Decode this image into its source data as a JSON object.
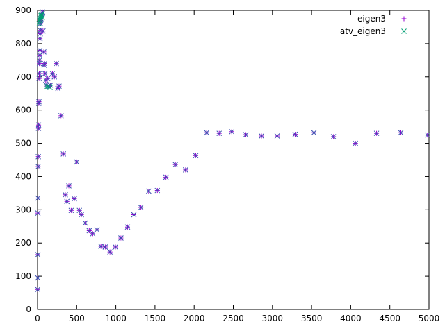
{
  "chart_data": {
    "type": "scatter",
    "title": "",
    "xlabel": "",
    "ylabel": "",
    "xlim": [
      0,
      5000
    ],
    "ylim": [
      0,
      900
    ],
    "xticks": [
      0,
      500,
      1000,
      1500,
      2000,
      2500,
      3000,
      3500,
      4000,
      4500,
      5000
    ],
    "yticks": [
      0,
      100,
      200,
      300,
      400,
      500,
      600,
      700,
      800,
      900
    ],
    "grid": false,
    "legend_position": "top-right",
    "series": [
      {
        "name": "eigen3",
        "color": "#9400d3",
        "marker": "plus",
        "points": [
          [
            2,
            60
          ],
          [
            3,
            95
          ],
          [
            4,
            165
          ],
          [
            5,
            290
          ],
          [
            6,
            335
          ],
          [
            8,
            430
          ],
          [
            10,
            460
          ],
          [
            12,
            545
          ],
          [
            14,
            555
          ],
          [
            16,
            620
          ],
          [
            18,
            625
          ],
          [
            20,
            695
          ],
          [
            22,
            710
          ],
          [
            24,
            740
          ],
          [
            26,
            750
          ],
          [
            28,
            765
          ],
          [
            30,
            780
          ],
          [
            32,
            815
          ],
          [
            34,
            830
          ],
          [
            36,
            840
          ],
          [
            38,
            860
          ],
          [
            40,
            870
          ],
          [
            45,
            875
          ],
          [
            50,
            880
          ],
          [
            55,
            885
          ],
          [
            60,
            890
          ],
          [
            65,
            895
          ],
          [
            70,
            838
          ],
          [
            80,
            775
          ],
          [
            85,
            735
          ],
          [
            90,
            740
          ],
          [
            95,
            710
          ],
          [
            105,
            690
          ],
          [
            115,
            675
          ],
          [
            130,
            695
          ],
          [
            150,
            670
          ],
          [
            165,
            675
          ],
          [
            190,
            710
          ],
          [
            215,
            700
          ],
          [
            240,
            740
          ],
          [
            260,
            665
          ],
          [
            275,
            672
          ],
          [
            300,
            583
          ],
          [
            330,
            468
          ],
          [
            355,
            345
          ],
          [
            375,
            325
          ],
          [
            400,
            372
          ],
          [
            430,
            298
          ],
          [
            470,
            333
          ],
          [
            500,
            444
          ],
          [
            535,
            298
          ],
          [
            560,
            285
          ],
          [
            610,
            260
          ],
          [
            660,
            237
          ],
          [
            705,
            228
          ],
          [
            760,
            240
          ],
          [
            810,
            190
          ],
          [
            865,
            188
          ],
          [
            925,
            173
          ],
          [
            995,
            188
          ],
          [
            1065,
            215
          ],
          [
            1150,
            248
          ],
          [
            1230,
            285
          ],
          [
            1320,
            307
          ],
          [
            1420,
            356
          ],
          [
            1530,
            358
          ],
          [
            1640,
            398
          ],
          [
            1760,
            436
          ],
          [
            1890,
            420
          ],
          [
            2020,
            463
          ],
          [
            2160,
            532
          ],
          [
            2320,
            530
          ],
          [
            2480,
            535
          ],
          [
            2660,
            526
          ],
          [
            2860,
            522
          ],
          [
            3060,
            522
          ],
          [
            3290,
            527
          ],
          [
            3530,
            532
          ],
          [
            3780,
            520
          ],
          [
            4060,
            500
          ],
          [
            4330,
            530
          ],
          [
            4640,
            532
          ],
          [
            4980,
            525
          ]
        ]
      },
      {
        "name": "atv_eigen3",
        "color": "#009e73",
        "marker": "cross",
        "points": [
          [
            20,
            860
          ],
          [
            25,
            868
          ],
          [
            30,
            872
          ],
          [
            35,
            876
          ],
          [
            40,
            880
          ],
          [
            45,
            884
          ],
          [
            50,
            888
          ],
          [
            55,
            885
          ],
          [
            60,
            878
          ],
          [
            120,
            670
          ],
          [
            140,
            672
          ],
          [
            160,
            668
          ]
        ]
      }
    ]
  }
}
